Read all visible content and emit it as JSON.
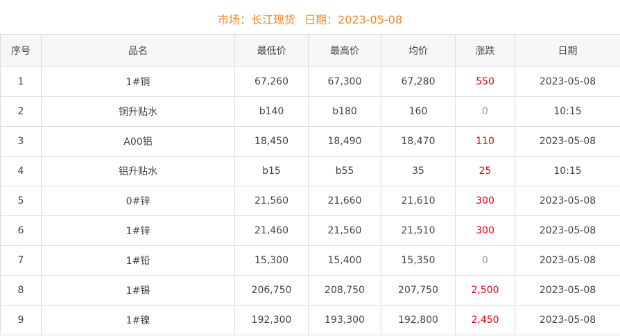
{
  "header": {
    "market_label": "市场：长江现货",
    "date_label": "日期：2023-05-08"
  },
  "colors": {
    "title": "#f0892a",
    "rise": "#e60012",
    "flat": "#999999"
  },
  "table": {
    "columns": [
      "序号",
      "品名",
      "最低价",
      "最高价",
      "均价",
      "涨跌",
      "日期"
    ],
    "rows": [
      [
        "1",
        "1#铜",
        "67,260",
        "67,300",
        "67,280",
        "550",
        "2023-05-08"
      ],
      [
        "2",
        "铜升贴水",
        "b140",
        "b180",
        "160",
        "0",
        "10:15"
      ],
      [
        "3",
        "A00铝",
        "18,450",
        "18,490",
        "18,470",
        "110",
        "2023-05-08"
      ],
      [
        "4",
        "铝升贴水",
        "b15",
        "b55",
        "35",
        "25",
        "10:15"
      ],
      [
        "5",
        "0#锌",
        "21,560",
        "21,660",
        "21,610",
        "300",
        "2023-05-08"
      ],
      [
        "6",
        "1#锌",
        "21,460",
        "21,560",
        "21,510",
        "300",
        "2023-05-08"
      ],
      [
        "7",
        "1#铅",
        "15,300",
        "15,400",
        "15,350",
        "0",
        "2023-05-08"
      ],
      [
        "8",
        "1#锡",
        "206,750",
        "208,750",
        "207,750",
        "2,500",
        "2023-05-08"
      ],
      [
        "9",
        "1#镍",
        "192,300",
        "193,300",
        "192,800",
        "2,450",
        "2023-05-08"
      ]
    ]
  }
}
